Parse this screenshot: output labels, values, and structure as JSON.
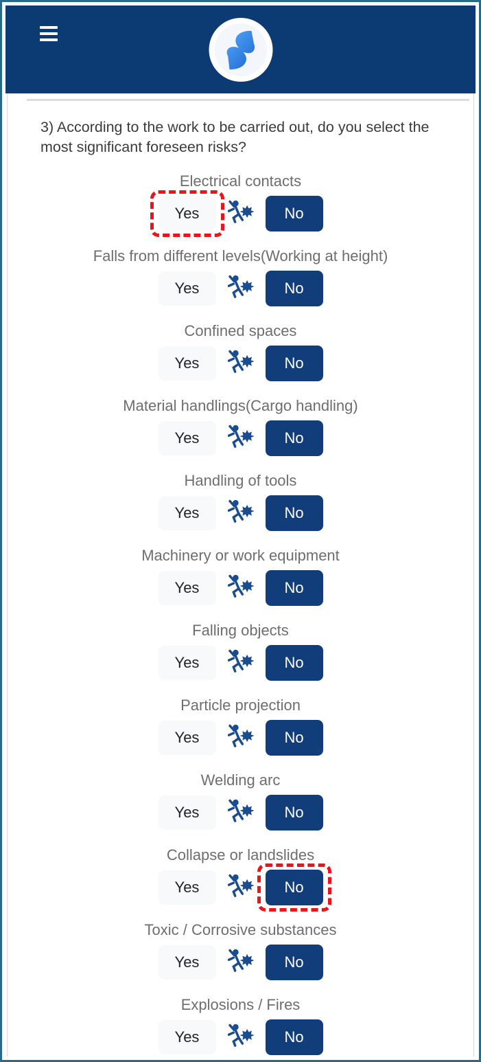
{
  "header": {
    "menu_icon": "hamburger-icon",
    "logo_icon": "blue-s-swirl-logo"
  },
  "question": {
    "text": "3) According to the work to be carried out, do you select the most significant foreseen risks?"
  },
  "controls": {
    "yes_label": "Yes",
    "no_label": "No",
    "between_icon": "person-falling-burst-icon"
  },
  "risks": [
    {
      "label": "Electrical contacts",
      "selected": "No",
      "highlight": "yes"
    },
    {
      "label": "Falls from different levels(Working at height)",
      "selected": "No",
      "highlight": null
    },
    {
      "label": "Confined spaces",
      "selected": "No",
      "highlight": null
    },
    {
      "label": "Material handlings(Cargo handling)",
      "selected": "No",
      "highlight": null
    },
    {
      "label": "Handling of tools",
      "selected": "No",
      "highlight": null
    },
    {
      "label": "Machinery or work equipment",
      "selected": "No",
      "highlight": null
    },
    {
      "label": "Falling objects",
      "selected": "No",
      "highlight": null
    },
    {
      "label": "Particle projection",
      "selected": "No",
      "highlight": null
    },
    {
      "label": "Welding arc",
      "selected": "No",
      "highlight": null
    },
    {
      "label": "Collapse or landslides",
      "selected": "No",
      "highlight": "no"
    },
    {
      "label": "Toxic / Corrosive substances",
      "selected": "No",
      "highlight": null
    },
    {
      "label": "Explosions / Fires",
      "selected": "No",
      "highlight": null
    }
  ],
  "colors": {
    "frame_border": "#266a8c",
    "header_bg": "#0c3a72",
    "no_button_bg": "#113e7a",
    "yes_button_bg": "#f8f9fa",
    "icon_blue": "#1a4c8f",
    "highlight_red": "#e8151a",
    "label_gray": "#6e6e6e",
    "logo_blue_light": "#53a8f2",
    "logo_blue_dark": "#1e66d9"
  }
}
